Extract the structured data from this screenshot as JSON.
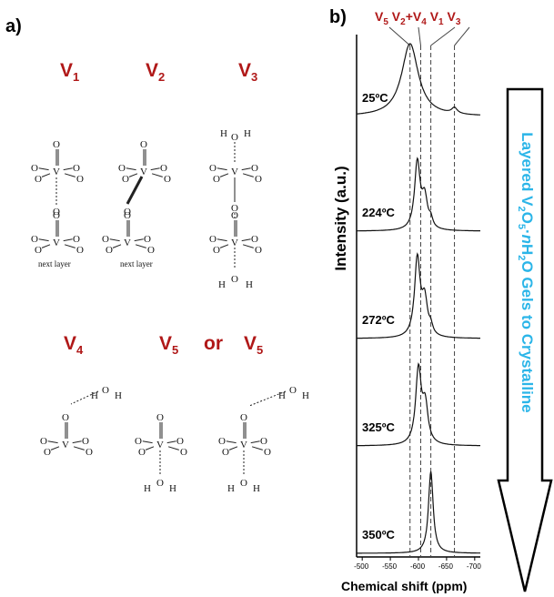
{
  "panel_a": {
    "label": "a)",
    "sites_top": [
      {
        "name": "V",
        "sub": "1"
      },
      {
        "name": "V",
        "sub": "2"
      },
      {
        "name": "V",
        "sub": "3"
      }
    ],
    "sites_bottom": [
      {
        "name": "V",
        "sub": "4"
      },
      {
        "name": "V",
        "sub": "5"
      },
      {
        "name": "V",
        "sub": "5"
      }
    ],
    "or_text": "or",
    "captions": [
      "next layer",
      "next layer"
    ],
    "atoms": {
      "oxygen": "O",
      "vanadium": "V",
      "hydrogen": "H"
    }
  },
  "panel_b": {
    "label": "b)",
    "peak_labels": "V5 V2+V4 V1 V3",
    "peak_label_parts": [
      {
        "name": "V",
        "sub": "5"
      },
      {
        "name": "V",
        "sub": "2"
      },
      {
        "plus": "+"
      },
      {
        "name": "V",
        "sub": "4"
      },
      {
        "name": "V",
        "sub": "1"
      },
      {
        "name": "V",
        "sub": "3"
      }
    ],
    "vertical_title_parts": [
      "Layered V",
      "2",
      "O",
      "5",
      "·",
      "n",
      "H",
      "2",
      "O Gels to Crystalline"
    ],
    "colors": {
      "accent_red": "#b01818",
      "title_blue": "#2bb5e8"
    }
  },
  "chart_data": {
    "type": "line",
    "xlabel": "Chemical shift (ppm)",
    "ylabel": "Intensity (a.u.)",
    "xlim": [
      -490,
      -710
    ],
    "x_ticks": [
      -500,
      -550,
      -600,
      -650,
      -700
    ],
    "x_tick_labels": [
      "-500",
      "-550",
      "-600",
      "-650",
      "-700"
    ],
    "reference_lines_ppm": [
      -585,
      -604,
      -622,
      -664
    ],
    "series": [
      {
        "name": "25ºC",
        "peaks": [
          {
            "center": -585,
            "height": 1.0,
            "width": 18
          },
          {
            "center": -664,
            "height": 0.08,
            "width": 6
          }
        ]
      },
      {
        "name": "224ºC",
        "peaks": [
          {
            "center": -598,
            "height": 1.0,
            "width": 6
          },
          {
            "center": -611,
            "height": 0.45,
            "width": 6
          },
          {
            "center": -622,
            "height": 0.12,
            "width": 4
          }
        ]
      },
      {
        "name": "272ºC",
        "peaks": [
          {
            "center": -598,
            "height": 1.0,
            "width": 6
          },
          {
            "center": -611,
            "height": 0.45,
            "width": 6
          },
          {
            "center": -622,
            "height": 0.1,
            "width": 4
          }
        ]
      },
      {
        "name": "325ºC",
        "peaks": [
          {
            "center": -600,
            "height": 1.0,
            "width": 6
          },
          {
            "center": -612,
            "height": 0.5,
            "width": 6
          }
        ]
      },
      {
        "name": "350ºC",
        "peaks": [
          {
            "center": -622,
            "height": 1.0,
            "width": 5
          }
        ]
      }
    ]
  }
}
